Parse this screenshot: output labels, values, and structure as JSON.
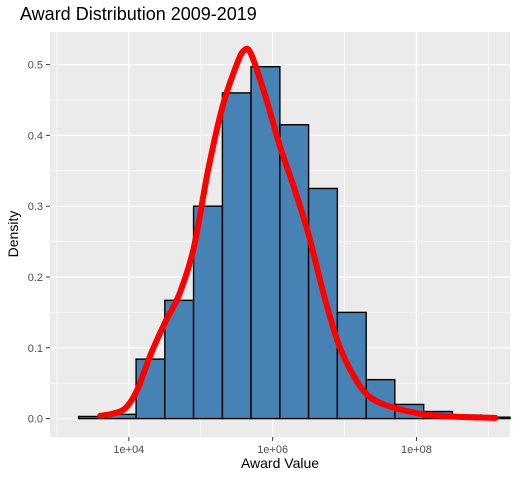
{
  "chart_data": {
    "type": "bar",
    "title": "Award Distribution 2009-2019",
    "xlabel": "Award Value",
    "ylabel": "Density",
    "x_scale": "log10",
    "xlim": [
      800,
      2000000000
    ],
    "ylim": [
      -0.026,
      0.546
    ],
    "x_ticks": [
      {
        "value": 10000,
        "label": "1e+04"
      },
      {
        "value": 1000000,
        "label": "1e+06"
      },
      {
        "value": 100000000,
        "label": "1e+08"
      }
    ],
    "y_ticks": [
      {
        "value": 0.0,
        "label": "0.0"
      },
      {
        "value": 0.1,
        "label": "0.1"
      },
      {
        "value": 0.2,
        "label": "0.2"
      },
      {
        "value": 0.3,
        "label": "0.3"
      },
      {
        "value": 0.4,
        "label": "0.4"
      },
      {
        "value": 0.5,
        "label": "0.5"
      }
    ],
    "histogram": {
      "fill": "#4682b4",
      "stroke": "#000000",
      "bins": [
        {
          "x0": 2000,
          "x1": 5000,
          "density": 0.003
        },
        {
          "x0": 5000,
          "x1": 12600,
          "density": 0.006
        },
        {
          "x0": 12600,
          "x1": 31600,
          "density": 0.084
        },
        {
          "x0": 31600,
          "x1": 79400,
          "density": 0.167
        },
        {
          "x0": 79400,
          "x1": 200000,
          "density": 0.3
        },
        {
          "x0": 200000,
          "x1": 500000,
          "density": 0.46
        },
        {
          "x0": 500000,
          "x1": 1260000,
          "density": 0.497
        },
        {
          "x0": 1260000,
          "x1": 3160000,
          "density": 0.415
        },
        {
          "x0": 3160000,
          "x1": 7940000,
          "density": 0.325
        },
        {
          "x0": 7940000,
          "x1": 20000000,
          "density": 0.15
        },
        {
          "x0": 20000000,
          "x1": 50000000,
          "density": 0.055
        },
        {
          "x0": 50000000,
          "x1": 126000000,
          "density": 0.02
        },
        {
          "x0": 126000000,
          "x1": 316000000,
          "density": 0.01
        },
        {
          "x0": 316000000,
          "x1": 794000000,
          "density": 0.005
        },
        {
          "x0": 794000000,
          "x1": 2000000000,
          "density": 0.002
        }
      ]
    },
    "density_curve": {
      "color": "#ff0000",
      "points": [
        [
          4000,
          0.004
        ],
        [
          6000,
          0.007
        ],
        [
          9000,
          0.015
        ],
        [
          13000,
          0.04
        ],
        [
          20000,
          0.09
        ],
        [
          31600,
          0.135
        ],
        [
          50000,
          0.175
        ],
        [
          79400,
          0.24
        ],
        [
          126000,
          0.35
        ],
        [
          200000,
          0.44
        ],
        [
          316000,
          0.5
        ],
        [
          400000,
          0.52
        ],
        [
          500000,
          0.515
        ],
        [
          794000,
          0.455
        ],
        [
          1260000,
          0.385
        ],
        [
          2000000,
          0.325
        ],
        [
          3160000,
          0.26
        ],
        [
          5000000,
          0.18
        ],
        [
          7940000,
          0.11
        ],
        [
          12600000,
          0.065
        ],
        [
          20000000,
          0.035
        ],
        [
          31600000,
          0.022
        ],
        [
          50000000,
          0.015
        ],
        [
          79400000,
          0.01
        ],
        [
          126000000,
          0.006
        ],
        [
          200000000,
          0.004
        ],
        [
          500000000,
          0.002
        ],
        [
          1260000000,
          0.001
        ]
      ]
    },
    "grid": true,
    "panel_background": "#ebebeb",
    "grid_color": "#ffffff",
    "legend": "none"
  }
}
